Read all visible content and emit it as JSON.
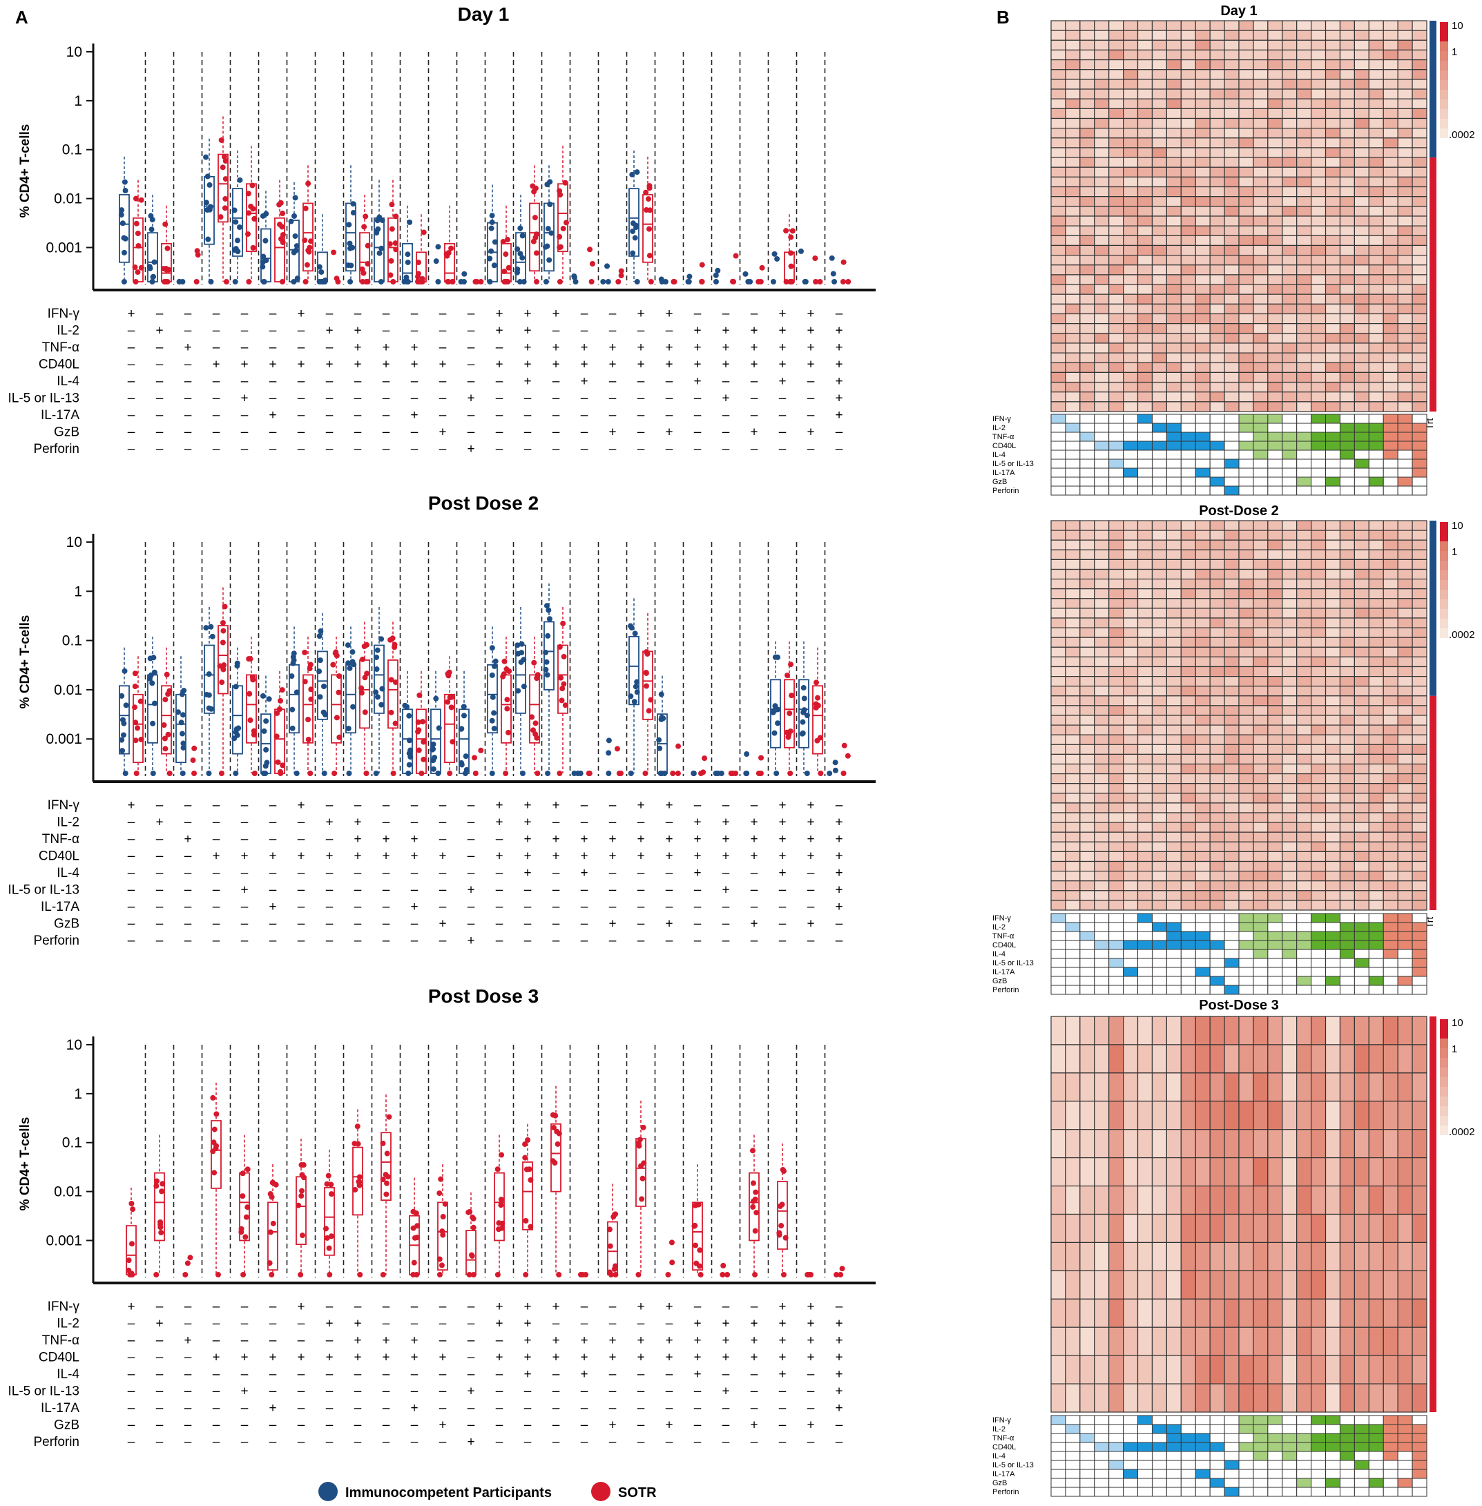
{
  "panels": {
    "a": "A",
    "b": "B"
  },
  "legend": {
    "ic_label": "Immunocompetent Participants",
    "sotr_label": "SOTR",
    "ic_color": "#1f4e85",
    "sotr_color": "#d7192e"
  },
  "colors": {
    "ic": "#1f4e85",
    "sotr": "#d7192e",
    "lightblue": "#a9d3ef",
    "blue": "#1b95d9",
    "lightgreen": "#a6cf7e",
    "green": "#5fae2b",
    "salmon": "#e7876f"
  },
  "markers": [
    "IFN-γ",
    "IL-2",
    "TNF-α",
    "CD40L",
    "IL-4",
    "IL-5 or IL-13",
    "IL-17A",
    "GzB",
    "Perforin"
  ],
  "combos": [
    "+--------",
    "-+-------",
    "--+------",
    "---+-----",
    "---+-+---",
    "---+--+--",
    "+--+-----",
    "-+-+-----",
    "-+++-----",
    "--++-----",
    "--++--+--",
    "---+---+-",
    "-----+--+",
    "++-+-----",
    "+++++----",
    "+-++-----",
    "--+++----",
    "--++---+-",
    "+-++-----",
    "+-++---+-",
    "-++++----",
    "-+++-+---",
    "-+++---+-",
    "+++++----",
    "++++---+-",
    "-++++++--"
  ],
  "legend_scale": {
    "max": "10",
    "mid": "1",
    "min": ".0002"
  },
  "trt_label": "Trt",
  "chart_data": [
    {
      "type": "box-strip",
      "title": "Day 1",
      "ylabel": "% CD4+ T-cells",
      "yscale": "log",
      "ylim": [
        0.0002,
        10
      ],
      "yticks": [
        "10",
        "1",
        "0.1",
        "0.01",
        "0.001"
      ],
      "series": [
        {
          "name": "Immunocompetent Participants",
          "box_present": [
            1,
            1,
            0,
            1,
            1,
            1,
            1,
            1,
            1,
            1,
            1,
            0,
            0,
            1,
            1,
            1,
            0,
            0,
            1,
            0,
            0,
            0,
            0,
            0,
            0,
            0
          ],
          "medians": [
            0.003,
            0.0005,
            0.0002,
            0.007,
            0.004,
            0.0006,
            0.0009,
            0.0002,
            0.002,
            0.001,
            0.0003,
            0.0002,
            0.0002,
            0.0008,
            0.0005,
            0.002,
            0.0002,
            0.0002,
            0.004,
            0.0002,
            0.0002,
            0.0002,
            0.0002,
            0.0002,
            0.0002,
            0.0002
          ]
        },
        {
          "name": "SOTR",
          "box_present": [
            1,
            1,
            0,
            1,
            1,
            1,
            1,
            0,
            1,
            1,
            1,
            1,
            0,
            1,
            1,
            1,
            0,
            0,
            1,
            0,
            0,
            0,
            0,
            1,
            0,
            0
          ],
          "medians": [
            0.001,
            0.0003,
            0.0002,
            0.02,
            0.005,
            0.001,
            0.002,
            0.0002,
            0.0005,
            0.001,
            0.0002,
            0.0003,
            0.0002,
            0.0003,
            0.002,
            0.005,
            0.0002,
            0.0002,
            0.003,
            0.0002,
            0.0002,
            0.0002,
            0.0002,
            0.0002,
            0.0002,
            0.0002
          ]
        }
      ]
    },
    {
      "type": "box-strip",
      "title": "Post Dose 2",
      "ylabel": "% CD4+ T-cells",
      "yscale": "log",
      "ylim": [
        0.0002,
        10
      ],
      "yticks": [
        "10",
        "1",
        "0.1",
        "0.01",
        "0.001"
      ],
      "series": [
        {
          "name": "Immunocompetent Participants",
          "box_present": [
            1,
            1,
            1,
            1,
            1,
            1,
            1,
            1,
            1,
            1,
            1,
            1,
            1,
            1,
            1,
            1,
            0,
            0,
            1,
            1,
            0,
            0,
            0,
            1,
            1,
            0
          ],
          "medians": [
            0.003,
            0.005,
            0.002,
            0.02,
            0.003,
            0.0008,
            0.008,
            0.015,
            0.008,
            0.02,
            0.001,
            0.001,
            0.001,
            0.008,
            0.02,
            0.06,
            0.0002,
            0.0002,
            0.03,
            0.0008,
            0.0002,
            0.0002,
            0.0002,
            0.004,
            0.004,
            0.0002
          ]
        },
        {
          "name": "SOTR",
          "box_present": [
            1,
            1,
            0,
            1,
            1,
            1,
            1,
            1,
            1,
            1,
            1,
            1,
            0,
            1,
            1,
            1,
            0,
            0,
            1,
            0,
            0,
            0,
            0,
            1,
            1,
            0
          ],
          "medians": [
            0.002,
            0.003,
            0.0002,
            0.05,
            0.005,
            0.001,
            0.005,
            0.005,
            0.01,
            0.01,
            0.001,
            0.002,
            0.0002,
            0.005,
            0.005,
            0.02,
            0.0002,
            0.0002,
            0.015,
            0.0002,
            0.0002,
            0.0002,
            0.0002,
            0.004,
            0.003,
            0.0002
          ]
        }
      ]
    },
    {
      "type": "box-strip",
      "title": "Post Dose 3",
      "ylabel": "% CD4+ T-cells",
      "yscale": "log",
      "ylim": [
        0.0002,
        10
      ],
      "yticks": [
        "10",
        "1",
        "0.1",
        "0.01",
        "0.001"
      ],
      "series": [
        {
          "name": "SOTR",
          "box_present": [
            1,
            1,
            0,
            1,
            1,
            1,
            1,
            1,
            1,
            1,
            1,
            1,
            1,
            1,
            1,
            1,
            0,
            1,
            1,
            0,
            1,
            0,
            1,
            1,
            0,
            0
          ],
          "medians": [
            0.0005,
            0.006,
            0.0002,
            0.07,
            0.006,
            0.0015,
            0.005,
            0.003,
            0.02,
            0.04,
            0.0008,
            0.0015,
            0.0004,
            0.006,
            0.01,
            0.06,
            0.0002,
            0.0006,
            0.03,
            0.0002,
            0.0015,
            0.0002,
            0.006,
            0.004,
            0.0002,
            0.0002
          ]
        }
      ]
    },
    {
      "type": "heatmap",
      "title": "Day 1",
      "rows": 40,
      "cols": 26,
      "ic_rows": 14,
      "sotr_rows": 26,
      "color_scale": "log 0.0002 to 10"
    },
    {
      "type": "heatmap",
      "title": "Post-Dose 2",
      "rows": 40,
      "cols": 26,
      "ic_rows": 18,
      "sotr_rows": 22,
      "color_scale": "log 0.0002 to 10"
    },
    {
      "type": "heatmap",
      "title": "Post-Dose 3",
      "rows": 14,
      "cols": 26,
      "ic_rows": 0,
      "sotr_rows": 14,
      "color_scale": "log 0.0002 to 10"
    }
  ]
}
